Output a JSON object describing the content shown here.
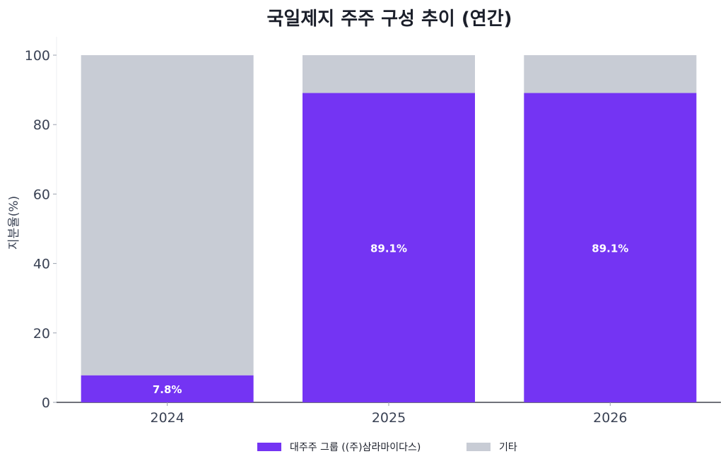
{
  "chart_data": {
    "type": "bar",
    "stacked": true,
    "title": "국일제지 주주 구성 추이 (연간)",
    "xlabel": "",
    "ylabel": "지분율(%)",
    "ylim": [
      0,
      100
    ],
    "yticks": [
      0,
      20,
      40,
      60,
      80,
      100
    ],
    "categories": [
      "2024",
      "2025",
      "2026"
    ],
    "series": [
      {
        "name": "대주주 그룹 ((주)삼라마이다스)",
        "values": [
          7.8,
          89.1,
          89.1
        ],
        "color": "#7434f3",
        "labels": [
          "7.8%",
          "89.1%",
          "89.1%"
        ]
      },
      {
        "name": "기타",
        "values": [
          92.2,
          10.9,
          10.9
        ],
        "color": "#c8ccd5"
      }
    ],
    "legend_position": "bottom-center",
    "grid": false
  }
}
